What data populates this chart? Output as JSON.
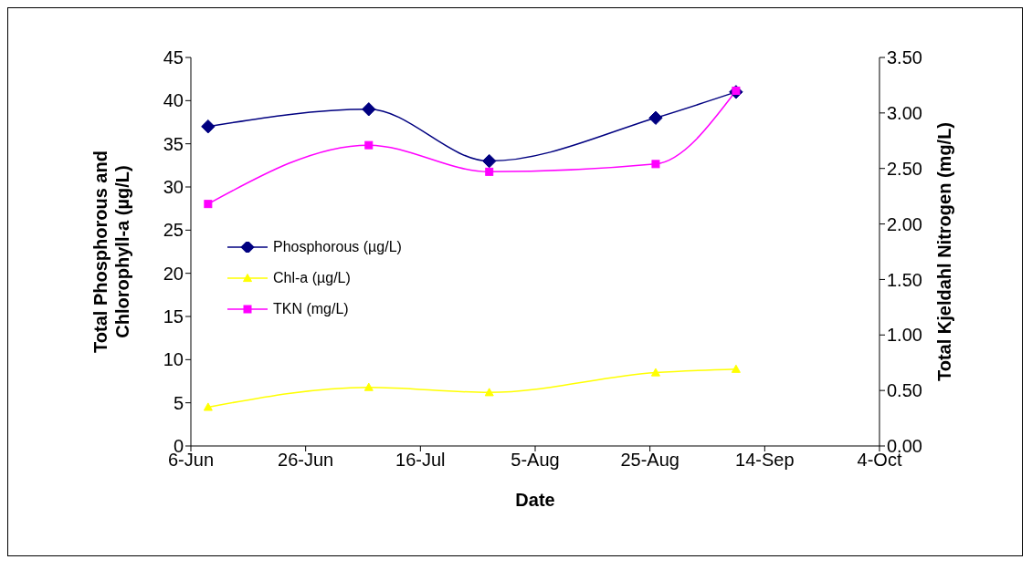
{
  "chart_data": {
    "type": "line",
    "xlabel": "Date",
    "ylabel": "Total Phosphorous and Chlorophyll-a (µg/L)",
    "y2label": "Total Kjeldahl Nitrogen (mg/L)",
    "x": [
      "--06-09",
      "--07-07",
      "--07-28",
      "--08-26",
      "--09-09"
    ],
    "xlim": [
      "--06-06",
      "--10-04"
    ],
    "xticks": [
      {
        "value": "--06-06",
        "label": "6-Jun"
      },
      {
        "value": "--06-26",
        "label": "26-Jun"
      },
      {
        "value": "--07-16",
        "label": "16-Jul"
      },
      {
        "value": "--08-05",
        "label": "5-Aug"
      },
      {
        "value": "--08-25",
        "label": "25-Aug"
      },
      {
        "value": "--09-14",
        "label": "14-Sep"
      },
      {
        "value": "--10-04",
        "label": "4-Oct"
      }
    ],
    "ylim": [
      0,
      45
    ],
    "yticks": [
      0,
      5,
      10,
      15,
      20,
      25,
      30,
      35,
      40,
      45
    ],
    "y2lim": [
      0,
      3.5
    ],
    "y2ticks": [
      {
        "value": 0,
        "label": "0.00"
      },
      {
        "value": 0.5,
        "label": "0.50"
      },
      {
        "value": 1,
        "label": "1.00"
      },
      {
        "value": 1.5,
        "label": "1.50"
      },
      {
        "value": 2,
        "label": "2.00"
      },
      {
        "value": 2.5,
        "label": "2.50"
      },
      {
        "value": 3,
        "label": "3.00"
      },
      {
        "value": 3.5,
        "label": "3.50"
      }
    ],
    "grid": false,
    "legend": "left",
    "series": [
      {
        "name": "Phosphorous (µg/L)",
        "color": "#000080",
        "marker": "diamond",
        "values": [
          37,
          39,
          33,
          38,
          41
        ]
      },
      {
        "name": "Chl-a (µg/L)",
        "color": "#ffff00",
        "marker": "triangle",
        "values": [
          4.5,
          6.8,
          6.2,
          8.5,
          8.9
        ]
      },
      {
        "name": "TKN (mg/L)",
        "color": "#ff00ff",
        "marker": "square",
        "axis": "y2",
        "values": [
          2.18,
          2.71,
          2.47,
          2.54,
          3.2
        ]
      }
    ]
  }
}
